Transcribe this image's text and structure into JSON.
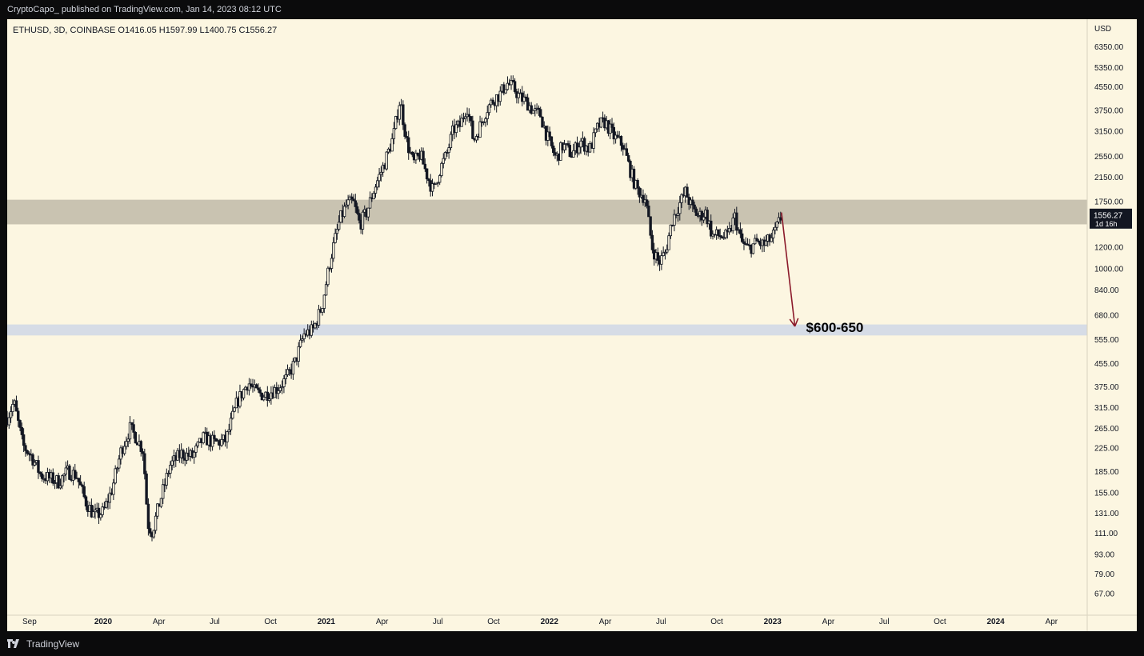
{
  "topbar": {
    "publish_line": "CryptoCapo_ published on TradingView.com, Jan 14, 2023 08:12 UTC"
  },
  "header": {
    "symbol_line": "ETHUSD, 3D, COINBASE  O1416.05  H1597.99  L1400.75  C1556.27"
  },
  "footer": {
    "brand": "TradingView"
  },
  "colors": {
    "background": "#fcf6e1",
    "candle": "#131722",
    "resistance_zone": "#c9c3b1",
    "support_zone": "#d6dce6",
    "arrow": "#8b1a2b",
    "price_tag": "#131722"
  },
  "chart_data": {
    "type": "candlestick",
    "title": "ETHUSD, 3D, COINBASE",
    "ohlc_last": {
      "open": 1416.05,
      "high": 1597.99,
      "low": 1400.75,
      "close": 1556.27
    },
    "yscale": "log",
    "ylabel": "USD",
    "ylim": [
      56,
      8000
    ],
    "y_ticks": [
      6350,
      5350,
      4550,
      3750,
      3150,
      2550,
      2150,
      1750,
      1200,
      1000,
      840,
      680,
      555,
      455,
      375,
      315,
      265,
      225,
      185,
      155,
      131,
      111,
      93,
      79,
      67
    ],
    "y_tick_labels": [
      "6350.00",
      "5350.00",
      "4550.00",
      "3750.00",
      "3150.00",
      "2550.00",
      "2150.00",
      "1750.00",
      "1200.00",
      "1000.00",
      "840.00",
      "680.00",
      "555.00",
      "455.00",
      "375.00",
      "315.00",
      "265.00",
      "225.00",
      "185.00",
      "155.00",
      "131.00",
      "111.00",
      "93.00",
      "79.00",
      "67.00"
    ],
    "xlim": [
      2019.57,
      2024.41
    ],
    "x_ticks": [
      {
        "t": 2019.67,
        "label": "Sep",
        "bold": false
      },
      {
        "t": 2020.0,
        "label": "2020",
        "bold": true
      },
      {
        "t": 2020.25,
        "label": "Apr",
        "bold": false
      },
      {
        "t": 2020.5,
        "label": "Jul",
        "bold": false
      },
      {
        "t": 2020.75,
        "label": "Oct",
        "bold": false
      },
      {
        "t": 2021.0,
        "label": "2021",
        "bold": true
      },
      {
        "t": 2021.25,
        "label": "Apr",
        "bold": false
      },
      {
        "t": 2021.5,
        "label": "Jul",
        "bold": false
      },
      {
        "t": 2021.75,
        "label": "Oct",
        "bold": false
      },
      {
        "t": 2022.0,
        "label": "2022",
        "bold": true
      },
      {
        "t": 2022.25,
        "label": "Apr",
        "bold": false
      },
      {
        "t": 2022.5,
        "label": "Jul",
        "bold": false
      },
      {
        "t": 2022.75,
        "label": "Oct",
        "bold": false
      },
      {
        "t": 2023.0,
        "label": "2023",
        "bold": true
      },
      {
        "t": 2023.25,
        "label": "Apr",
        "bold": false
      },
      {
        "t": 2023.5,
        "label": "Jul",
        "bold": false
      },
      {
        "t": 2023.75,
        "label": "Oct",
        "bold": false
      },
      {
        "t": 2024.0,
        "label": "2024",
        "bold": true
      },
      {
        "t": 2024.25,
        "label": "Apr",
        "bold": false
      }
    ],
    "price_path": [
      [
        2019.57,
        290
      ],
      [
        2019.6,
        330
      ],
      [
        2019.64,
        230
      ],
      [
        2019.68,
        210
      ],
      [
        2019.72,
        180
      ],
      [
        2019.76,
        175
      ],
      [
        2019.8,
        170
      ],
      [
        2019.84,
        185
      ],
      [
        2019.88,
        180
      ],
      [
        2019.92,
        145
      ],
      [
        2019.96,
        128
      ],
      [
        2020.0,
        132
      ],
      [
        2020.04,
        160
      ],
      [
        2020.08,
        220
      ],
      [
        2020.12,
        265
      ],
      [
        2020.15,
        245
      ],
      [
        2020.18,
        220
      ],
      [
        2020.2,
        120
      ],
      [
        2020.22,
        112
      ],
      [
        2020.25,
        140
      ],
      [
        2020.3,
        195
      ],
      [
        2020.35,
        215
      ],
      [
        2020.4,
        210
      ],
      [
        2020.45,
        245
      ],
      [
        2020.5,
        235
      ],
      [
        2020.55,
        240
      ],
      [
        2020.6,
        330
      ],
      [
        2020.65,
        390
      ],
      [
        2020.68,
        360
      ],
      [
        2020.72,
        350
      ],
      [
        2020.78,
        370
      ],
      [
        2020.82,
        400
      ],
      [
        2020.86,
        460
      ],
      [
        2020.9,
        580
      ],
      [
        2020.94,
        600
      ],
      [
        2020.98,
        730
      ],
      [
        2021.02,
        1100
      ],
      [
        2021.06,
        1500
      ],
      [
        2021.09,
        1700
      ],
      [
        2021.12,
        1750
      ],
      [
        2021.15,
        1450
      ],
      [
        2021.18,
        1600
      ],
      [
        2021.22,
        2000
      ],
      [
        2021.26,
        2400
      ],
      [
        2021.3,
        3000
      ],
      [
        2021.33,
        4100
      ],
      [
        2021.36,
        2900
      ],
      [
        2021.39,
        2400
      ],
      [
        2021.42,
        2600
      ],
      [
        2021.45,
        2200
      ],
      [
        2021.48,
        1900
      ],
      [
        2021.51,
        2300
      ],
      [
        2021.54,
        2600
      ],
      [
        2021.57,
        3200
      ],
      [
        2021.6,
        3300
      ],
      [
        2021.63,
        3900
      ],
      [
        2021.66,
        2900
      ],
      [
        2021.69,
        3300
      ],
      [
        2021.72,
        3800
      ],
      [
        2021.75,
        4100
      ],
      [
        2021.78,
        4300
      ],
      [
        2021.81,
        4700
      ],
      [
        2021.84,
        4500
      ],
      [
        2021.87,
        4150
      ],
      [
        2021.9,
        4000
      ],
      [
        2021.93,
        3700
      ],
      [
        2021.96,
        3600
      ],
      [
        2021.99,
        3000
      ],
      [
        2022.03,
        2500
      ],
      [
        2022.06,
        2800
      ],
      [
        2022.1,
        2600
      ],
      [
        2022.14,
        2900
      ],
      [
        2022.18,
        2700
      ],
      [
        2022.22,
        3300
      ],
      [
        2022.25,
        3400
      ],
      [
        2022.29,
        3000
      ],
      [
        2022.33,
        2800
      ],
      [
        2022.36,
        2300
      ],
      [
        2022.39,
        1950
      ],
      [
        2022.43,
        1800
      ],
      [
        2022.46,
        1200
      ],
      [
        2022.49,
        1050
      ],
      [
        2022.52,
        1150
      ],
      [
        2022.55,
        1500
      ],
      [
        2022.58,
        1700
      ],
      [
        2022.61,
        1900
      ],
      [
        2022.64,
        1650
      ],
      [
        2022.67,
        1550
      ],
      [
        2022.7,
        1600
      ],
      [
        2022.73,
        1320
      ],
      [
        2022.76,
        1320
      ],
      [
        2022.8,
        1300
      ],
      [
        2022.83,
        1550
      ],
      [
        2022.86,
        1250
      ],
      [
        2022.89,
        1180
      ],
      [
        2022.93,
        1250
      ],
      [
        2022.96,
        1220
      ],
      [
        2023.0,
        1300
      ],
      [
        2023.02,
        1416
      ],
      [
        2023.04,
        1556
      ]
    ],
    "zones": [
      {
        "name": "resistance",
        "from": 1450,
        "to": 1780
      },
      {
        "name": "support",
        "from": 575,
        "to": 630
      }
    ],
    "arrow": {
      "from_t": 2023.04,
      "from_price": 1600,
      "to_t": 2023.1,
      "to_price": 620
    },
    "annotations": [
      {
        "text": "$600-650",
        "t": 2023.15,
        "price": 615
      }
    ],
    "price_tag": {
      "price": 1556.27,
      "label": "1556.27",
      "countdown": "1d 16h"
    }
  }
}
